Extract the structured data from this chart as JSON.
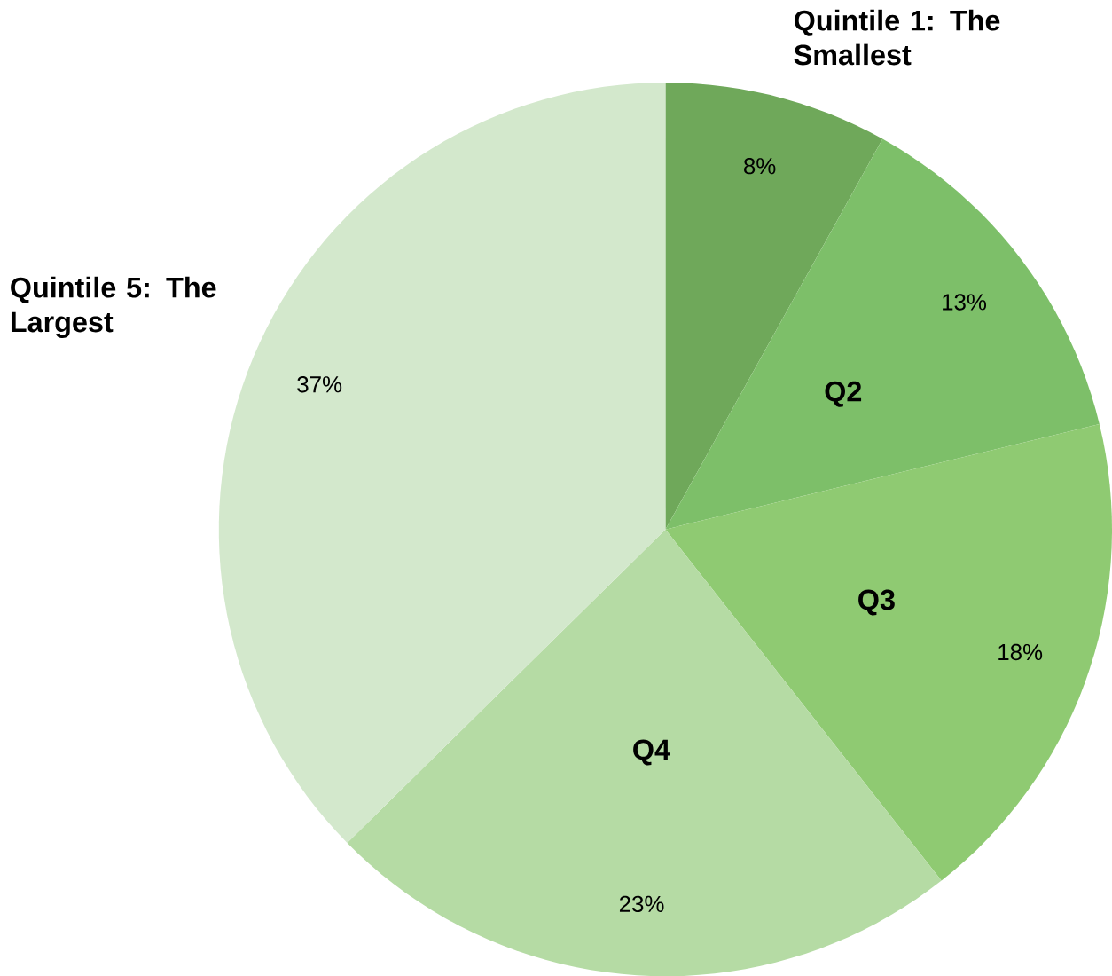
{
  "chart_data": {
    "type": "pie",
    "categories": [
      "Quintile 1: The Smallest",
      "Q2",
      "Q3",
      "Q4",
      "Quintile 5: The Largest"
    ],
    "values": [
      8,
      13,
      18,
      23,
      37
    ],
    "colors": [
      "#6fa85a",
      "#7dbf69",
      "#8fca72",
      "#b5dba4",
      "#d3e8cc"
    ],
    "value_labels": [
      "8%",
      "13%",
      "18%",
      "23%",
      "37%"
    ]
  }
}
